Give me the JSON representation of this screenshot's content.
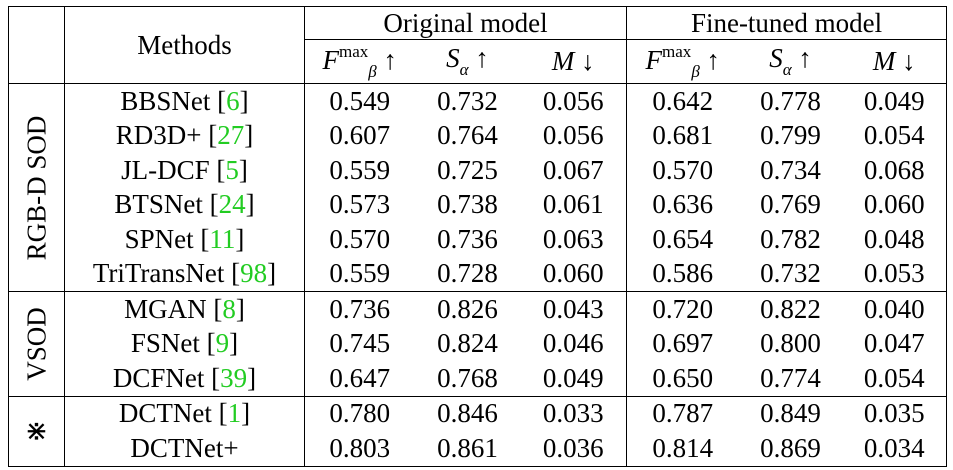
{
  "header": {
    "methods": "Methods",
    "original": "Original model",
    "finetuned": "Fine-tuned model",
    "metrics": [
      {
        "sym": "F",
        "sup": "max",
        "sub": "β",
        "arrow": "↑"
      },
      {
        "sym": "S",
        "sup": "",
        "sub": "α",
        "arrow": "↑"
      },
      {
        "sym": "M",
        "sup": "",
        "sub": "",
        "arrow": "↓"
      }
    ]
  },
  "groups": [
    {
      "label": "RGB-D SOD",
      "rows": [
        {
          "name": "BBSNet",
          "cite": "6",
          "orig": [
            "0.549",
            "0.732",
            "0.056"
          ],
          "ft": [
            "0.642",
            "0.778",
            "0.049"
          ],
          "bold_orig": [
            false,
            false,
            false
          ],
          "bold_ft": [
            false,
            false,
            false
          ]
        },
        {
          "name": "RD3D+",
          "cite": "27",
          "orig": [
            "0.607",
            "0.764",
            "0.056"
          ],
          "ft": [
            "0.681",
            "0.799",
            "0.054"
          ],
          "bold_orig": [
            false,
            false,
            false
          ],
          "bold_ft": [
            false,
            false,
            false
          ]
        },
        {
          "name": "JL-DCF",
          "cite": "5",
          "orig": [
            "0.559",
            "0.725",
            "0.067"
          ],
          "ft": [
            "0.570",
            "0.734",
            "0.068"
          ],
          "bold_orig": [
            false,
            false,
            false
          ],
          "bold_ft": [
            false,
            false,
            false
          ]
        },
        {
          "name": "BTSNet",
          "cite": "24",
          "orig": [
            "0.573",
            "0.738",
            "0.061"
          ],
          "ft": [
            "0.636",
            "0.769",
            "0.060"
          ],
          "bold_orig": [
            false,
            false,
            false
          ],
          "bold_ft": [
            false,
            false,
            false
          ]
        },
        {
          "name": "SPNet",
          "cite": "11",
          "orig": [
            "0.570",
            "0.736",
            "0.063"
          ],
          "ft": [
            "0.654",
            "0.782",
            "0.048"
          ],
          "bold_orig": [
            false,
            false,
            false
          ],
          "bold_ft": [
            false,
            false,
            false
          ]
        },
        {
          "name": "TriTransNet",
          "cite": "98",
          "orig": [
            "0.559",
            "0.728",
            "0.060"
          ],
          "ft": [
            "0.586",
            "0.732",
            "0.053"
          ],
          "bold_orig": [
            false,
            false,
            false
          ],
          "bold_ft": [
            false,
            false,
            false
          ]
        }
      ]
    },
    {
      "label": "VSOD",
      "rows": [
        {
          "name": "MGAN",
          "cite": "8",
          "orig": [
            "0.736",
            "0.826",
            "0.043"
          ],
          "ft": [
            "0.720",
            "0.822",
            "0.040"
          ],
          "bold_orig": [
            false,
            false,
            false
          ],
          "bold_ft": [
            false,
            false,
            false
          ]
        },
        {
          "name": "FSNet",
          "cite": "9",
          "orig": [
            "0.745",
            "0.824",
            "0.046"
          ],
          "ft": [
            "0.697",
            "0.800",
            "0.047"
          ],
          "bold_orig": [
            false,
            false,
            false
          ],
          "bold_ft": [
            false,
            false,
            false
          ]
        },
        {
          "name": "DCFNet",
          "cite": "39",
          "orig": [
            "0.647",
            "0.768",
            "0.049"
          ],
          "ft": [
            "0.650",
            "0.774",
            "0.054"
          ],
          "bold_orig": [
            false,
            false,
            false
          ],
          "bold_ft": [
            false,
            false,
            false
          ]
        }
      ]
    },
    {
      "label": "⋇",
      "symbol": true,
      "rows": [
        {
          "name": "DCTNet",
          "cite": "1",
          "orig": [
            "0.780",
            "0.846",
            "0.033"
          ],
          "ft": [
            "0.787",
            "0.849",
            "0.035"
          ],
          "bold_orig": [
            false,
            false,
            true
          ],
          "bold_ft": [
            false,
            false,
            false
          ]
        },
        {
          "name": "DCTNet+",
          "cite": "",
          "orig": [
            "0.803",
            "0.861",
            "0.036"
          ],
          "ft": [
            "0.814",
            "0.869",
            "0.034"
          ],
          "bold_orig": [
            true,
            true,
            false
          ],
          "bold_ft": [
            true,
            true,
            true
          ]
        }
      ]
    }
  ],
  "colors": {
    "citation": "#22cc22",
    "text": "#000000"
  }
}
